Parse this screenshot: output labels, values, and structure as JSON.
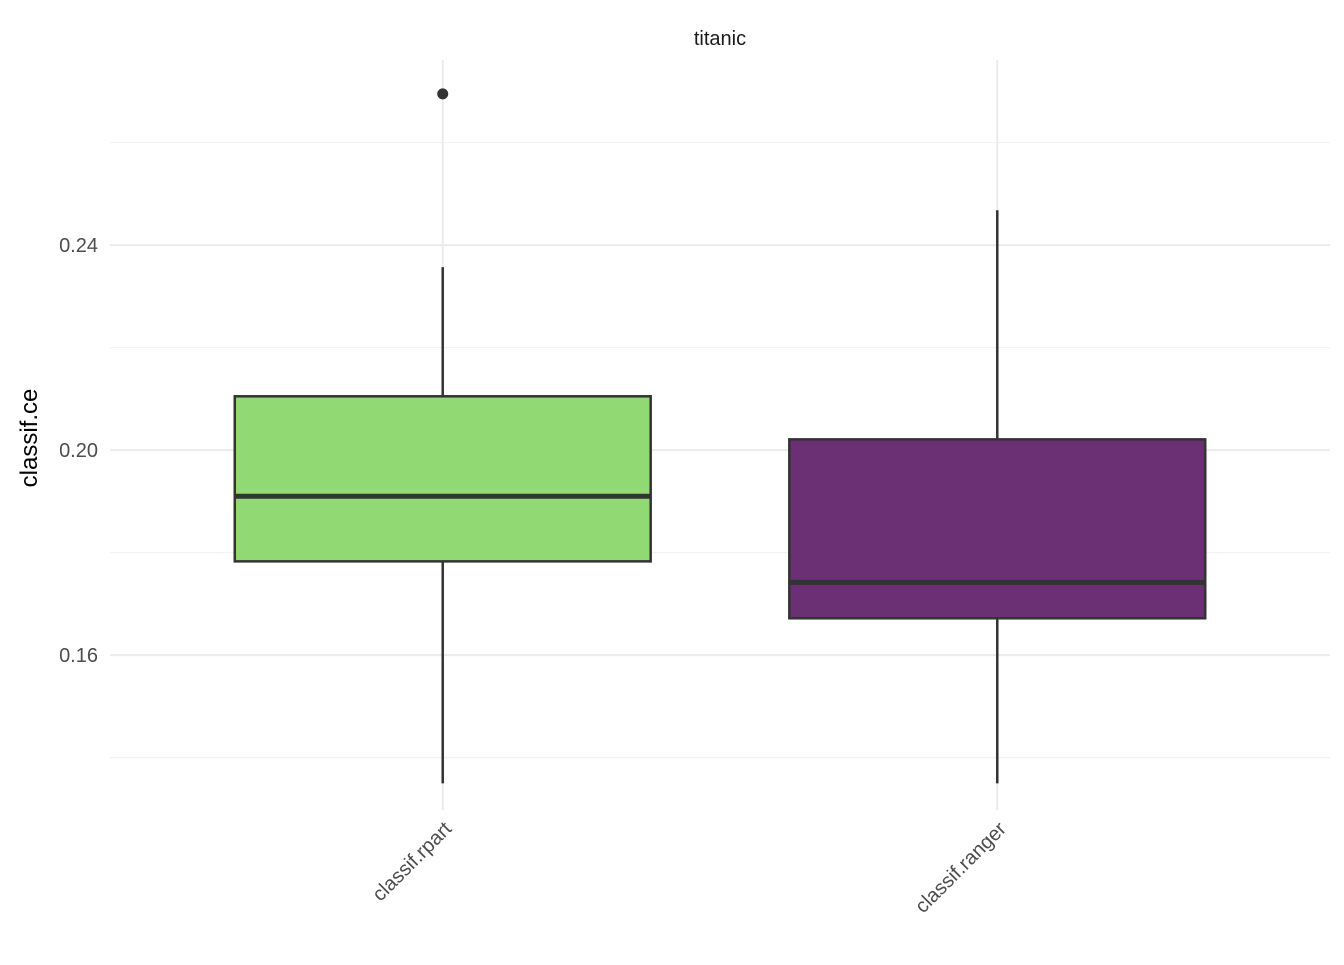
{
  "chart_data": {
    "type": "box",
    "facet_title": "titanic",
    "xlabel": "",
    "ylabel": "classif.ce",
    "ylim": [
      0.1298,
      0.2761
    ],
    "yticks": [
      0.16,
      0.2,
      0.24
    ],
    "ytick_labels": [
      "0.16",
      "0.20",
      "0.24"
    ],
    "grid": true,
    "categories": [
      "classif.rpart",
      "classif.ranger"
    ],
    "boxes": [
      {
        "category": "classif.rpart",
        "lower_whisker": 0.135,
        "q1": 0.1783,
        "median": 0.191,
        "q3": 0.2105,
        "upper_whisker": 0.2357,
        "outliers": [
          0.2695
        ],
        "fill": "#91d973"
      },
      {
        "category": "classif.ranger",
        "lower_whisker": 0.135,
        "q1": 0.1672,
        "median": 0.1742,
        "q3": 0.2021,
        "upper_whisker": 0.2468,
        "outliers": [],
        "fill": "#6a3073"
      }
    ]
  }
}
